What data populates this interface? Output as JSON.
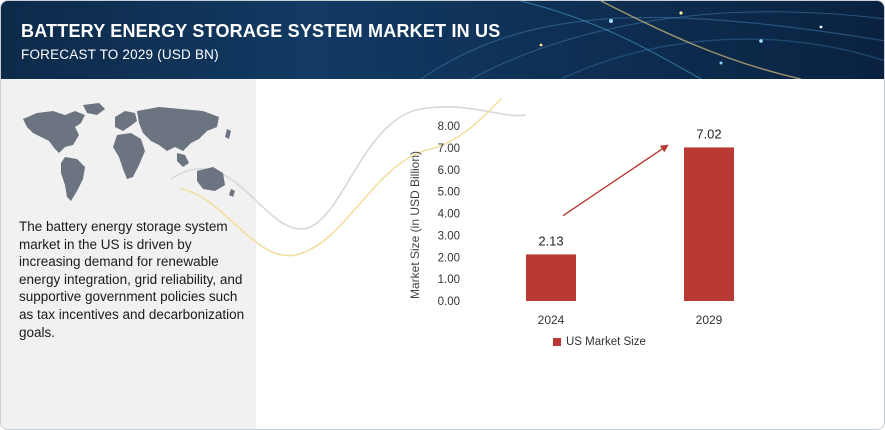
{
  "header": {
    "title": "BATTERY ENERGY STORAGE SYSTEM MARKET IN US",
    "subtitle": "FORECAST TO 2029 (USD BN)"
  },
  "description": "The battery energy storage system market in the US is driven by increasing demand for renewable energy integration, grid reliability, and supportive government policies such as tax incentives and decarbonization goals.",
  "colors": {
    "bar": "#b83a33",
    "arrow": "#b83a33",
    "header_bg": "#0f3156",
    "left_panel_bg": "#f1f1f1",
    "map": "#6b7480"
  },
  "icons": {
    "map": "world-map-icon",
    "arrow": "growth-arrow-icon"
  },
  "chart_data": {
    "type": "bar",
    "categories": [
      "2024",
      "2029"
    ],
    "series": [
      {
        "name": "US Market Size",
        "values": [
          2.13,
          7.02
        ]
      }
    ],
    "data_labels": [
      "2.13",
      "7.02"
    ],
    "y_ticks": [
      "0.00",
      "1.00",
      "2.00",
      "3.00",
      "4.00",
      "5.00",
      "6.00",
      "7.00",
      "8.00"
    ],
    "ylim": [
      0,
      8
    ],
    "xlabel": "",
    "ylabel": "Market Size (in USD Billion)",
    "grid": false,
    "legend_position": "bottom"
  }
}
